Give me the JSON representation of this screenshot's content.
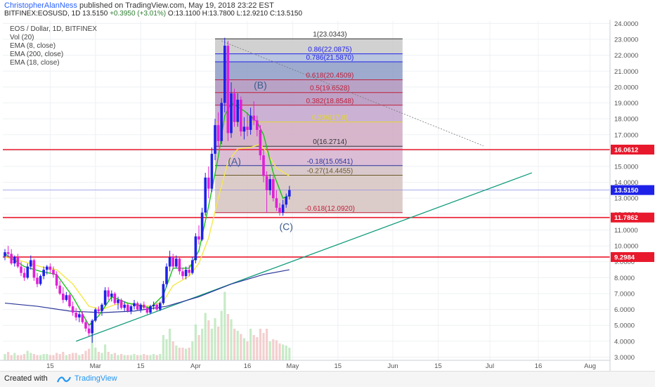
{
  "header": {
    "author": "ChristopherAlanNess",
    "published": "published on TradingView.com, May 19, 2018 23:22 EST",
    "symbol": "BITFINEX:EOSUSD, 1D",
    "last": "13.5150",
    "change": "+0.3950 (+3.01%)",
    "open": "O:13.1100",
    "high": "H:13.7800",
    "low": "L:12.9210",
    "close": "C:13.5150"
  },
  "legend": {
    "title": "EOS / Dollar, 1D, BITFINEX",
    "vol": "Vol (20)",
    "ema8": "EMA (8, close)",
    "ema200": "EMA (200, close)",
    "ema18": "EMA (18, close)"
  },
  "footer": {
    "created": "Created with",
    "brand": "TradingView"
  },
  "colors": {
    "up": "#1e22e8",
    "down": "#e11fd6",
    "ema8": "#18c418",
    "ema18": "#f5e84a",
    "ema200": "#2a3699",
    "red_level": "#e8192c",
    "trend": "#139c7c"
  },
  "chart_data": {
    "type": "candlestick",
    "x_axis": {
      "tick_labels": [
        "15",
        "Mar",
        "15",
        "Apr",
        "16",
        "May",
        "15",
        "Jun",
        "15",
        "Jul",
        "16",
        "Aug"
      ],
      "tick_days": [
        14,
        28,
        42,
        59,
        75,
        89,
        103,
        120,
        134,
        150,
        165,
        181
      ]
    },
    "y_axis": {
      "range": [
        2.8,
        24.15
      ],
      "ticks": [
        "3.0000",
        "4.0000",
        "5.0000",
        "6.0000",
        "7.0000",
        "8.0000",
        "9.0000",
        "10.0000",
        "11.0000",
        "12.0000",
        "13.0000",
        "14.0000",
        "15.0000",
        "16.0000",
        "17.0000",
        "18.0000",
        "19.0000",
        "20.0000",
        "21.0000",
        "22.0000",
        "23.0000",
        "24.0000"
      ]
    },
    "price_labels": [
      {
        "value": 16.0612,
        "text": "16.0612",
        "color": "#e8192c"
      },
      {
        "value": 13.515,
        "text": "13.5150",
        "color": "#1e22e8"
      },
      {
        "value": 11.7862,
        "text": "11.7862",
        "color": "#e8192c"
      },
      {
        "value": 9.2984,
        "text": "9.2984",
        "color": "#e8192c"
      }
    ],
    "horizontal_lines": [
      16.0612,
      11.7862,
      9.2984
    ],
    "candles": [
      [
        9.35,
        9.8,
        9.1,
        9.6
      ],
      [
        9.6,
        10.0,
        9.3,
        9.5
      ],
      [
        9.5,
        9.8,
        8.8,
        8.9
      ],
      [
        8.9,
        9.4,
        8.7,
        9.3
      ],
      [
        9.3,
        9.5,
        8.6,
        8.7
      ],
      [
        8.7,
        9.0,
        8.1,
        8.3
      ],
      [
        8.3,
        8.6,
        7.8,
        8.0
      ],
      [
        8.0,
        8.9,
        7.9,
        8.7
      ],
      [
        8.7,
        9.4,
        8.5,
        9.1
      ],
      [
        9.1,
        9.2,
        7.8,
        8.0
      ],
      [
        8.0,
        8.3,
        7.4,
        7.6
      ],
      [
        7.6,
        8.2,
        7.5,
        8.1
      ],
      [
        8.1,
        8.7,
        7.9,
        8.5
      ],
      [
        8.5,
        8.8,
        8.2,
        8.7
      ],
      [
        8.7,
        8.9,
        8.3,
        8.5
      ],
      [
        8.5,
        8.7,
        8.0,
        8.2
      ],
      [
        8.2,
        8.4,
        7.3,
        7.5
      ],
      [
        7.5,
        7.8,
        6.9,
        7.0
      ],
      [
        7.0,
        7.4,
        6.4,
        6.6
      ],
      [
        6.6,
        7.1,
        6.5,
        6.9
      ],
      [
        6.9,
        7.0,
        6.1,
        6.2
      ],
      [
        6.2,
        6.5,
        5.6,
        5.8
      ],
      [
        5.8,
        6.1,
        5.3,
        5.5
      ],
      [
        5.5,
        5.9,
        5.2,
        5.7
      ],
      [
        5.7,
        5.9,
        5.1,
        5.2
      ],
      [
        5.2,
        5.4,
        4.6,
        4.8
      ],
      [
        4.8,
        5.1,
        4.3,
        4.5
      ],
      [
        4.5,
        5.4,
        3.9,
        5.3
      ],
      [
        5.3,
        6.1,
        5.2,
        6.0
      ],
      [
        6.0,
        6.2,
        5.7,
        5.9
      ],
      [
        5.9,
        6.4,
        5.6,
        6.3
      ],
      [
        6.3,
        7.4,
        6.2,
        7.2
      ],
      [
        7.2,
        7.4,
        6.6,
        6.8
      ],
      [
        6.8,
        7.2,
        6.5,
        7.0
      ],
      [
        7.0,
        7.1,
        6.3,
        6.4
      ],
      [
        6.4,
        6.8,
        6.0,
        6.6
      ],
      [
        6.6,
        6.7,
        6.0,
        6.1
      ],
      [
        6.1,
        6.5,
        5.9,
        6.3
      ],
      [
        6.3,
        6.4,
        5.8,
        5.9
      ],
      [
        5.9,
        6.3,
        5.7,
        6.2
      ],
      [
        6.2,
        6.6,
        6.0,
        6.4
      ],
      [
        6.4,
        6.5,
        5.9,
        6.0
      ],
      [
        6.0,
        6.4,
        5.8,
        6.3
      ],
      [
        6.3,
        6.5,
        6.0,
        6.1
      ],
      [
        6.1,
        6.2,
        5.7,
        5.8
      ],
      [
        5.8,
        6.3,
        5.7,
        6.2
      ],
      [
        6.2,
        6.5,
        6.0,
        6.3
      ],
      [
        6.3,
        6.4,
        5.9,
        6.0
      ],
      [
        6.0,
        6.5,
        5.9,
        6.4
      ],
      [
        6.4,
        7.8,
        6.3,
        7.6
      ],
      [
        7.6,
        8.9,
        7.4,
        8.7
      ],
      [
        8.7,
        9.7,
        8.4,
        9.3
      ],
      [
        9.3,
        9.5,
        8.5,
        8.7
      ],
      [
        8.7,
        9.4,
        8.6,
        9.2
      ],
      [
        9.2,
        9.3,
        8.2,
        8.4
      ],
      [
        8.4,
        8.6,
        7.9,
        8.1
      ],
      [
        8.1,
        8.7,
        7.9,
        8.5
      ],
      [
        8.5,
        8.8,
        8.1,
        8.3
      ],
      [
        8.3,
        9.3,
        8.2,
        9.1
      ],
      [
        9.1,
        10.8,
        8.9,
        10.6
      ],
      [
        10.6,
        11.3,
        10.1,
        10.4
      ],
      [
        10.4,
        12.4,
        10.3,
        12.1
      ],
      [
        12.1,
        14.6,
        11.9,
        14.3
      ],
      [
        14.3,
        15.0,
        13.0,
        13.6
      ],
      [
        13.6,
        16.2,
        13.4,
        15.8
      ],
      [
        15.8,
        18.0,
        15.4,
        17.6
      ],
      [
        17.6,
        18.4,
        16.2,
        16.6
      ],
      [
        16.6,
        19.3,
        16.4,
        19.0
      ],
      [
        19.0,
        23.1,
        18.4,
        22.6
      ],
      [
        22.6,
        22.9,
        16.6,
        17.1
      ],
      [
        17.1,
        20.3,
        16.8,
        19.6
      ],
      [
        19.6,
        19.9,
        17.5,
        17.8
      ],
      [
        17.8,
        19.6,
        17.5,
        19.2
      ],
      [
        19.2,
        19.4,
        16.9,
        17.2
      ],
      [
        17.2,
        18.1,
        16.7,
        17.5
      ],
      [
        17.5,
        18.4,
        16.9,
        17.3
      ],
      [
        17.3,
        18.7,
        17.0,
        18.2
      ],
      [
        18.2,
        19.1,
        17.6,
        17.9
      ],
      [
        17.9,
        18.2,
        16.9,
        17.3
      ],
      [
        17.3,
        17.6,
        15.4,
        15.7
      ],
      [
        15.7,
        16.1,
        14.0,
        14.4
      ],
      [
        14.4,
        14.7,
        12.1,
        13.5
      ],
      [
        13.5,
        14.5,
        13.2,
        14.2
      ],
      [
        14.2,
        14.4,
        12.8,
        13.0
      ],
      [
        13.0,
        13.5,
        12.2,
        12.4
      ],
      [
        12.4,
        12.7,
        11.9,
        12.1
      ],
      [
        12.1,
        12.9,
        11.9,
        12.6
      ],
      [
        12.6,
        13.3,
        12.4,
        13.1
      ],
      [
        13.11,
        13.78,
        12.921,
        13.515
      ]
    ],
    "ema8": [
      [
        0,
        9.5
      ],
      [
        6,
        8.7
      ],
      [
        11,
        8.4
      ],
      [
        16,
        8.2
      ],
      [
        21,
        6.8
      ],
      [
        26,
        5.0
      ],
      [
        29,
        5.6
      ],
      [
        33,
        6.8
      ],
      [
        38,
        6.4
      ],
      [
        45,
        6.1
      ],
      [
        49,
        6.9
      ],
      [
        52,
        8.6
      ],
      [
        57,
        8.6
      ],
      [
        60,
        9.7
      ],
      [
        63,
        12.5
      ],
      [
        66,
        15.6
      ],
      [
        68,
        18.2
      ],
      [
        70,
        19.0
      ],
      [
        74,
        18.5
      ],
      [
        78,
        17.8
      ],
      [
        80,
        17.0
      ],
      [
        83,
        14.6
      ],
      [
        86,
        13.0
      ],
      [
        88,
        13.2
      ]
    ],
    "ema18": [
      [
        0,
        9.3
      ],
      [
        6,
        9.0
      ],
      [
        11,
        8.7
      ],
      [
        16,
        8.5
      ],
      [
        21,
        7.6
      ],
      [
        26,
        6.2
      ],
      [
        30,
        6.0
      ],
      [
        34,
        6.3
      ],
      [
        38,
        6.4
      ],
      [
        45,
        6.2
      ],
      [
        49,
        6.5
      ],
      [
        52,
        7.5
      ],
      [
        57,
        8.1
      ],
      [
        60,
        8.9
      ],
      [
        63,
        10.5
      ],
      [
        66,
        13.0
      ],
      [
        69,
        15.3
      ],
      [
        72,
        16.1
      ],
      [
        76,
        16.2
      ],
      [
        79,
        16.4
      ],
      [
        81,
        15.9
      ],
      [
        84,
        14.9
      ],
      [
        88,
        14.4
      ]
    ],
    "ema200": [
      [
        0,
        6.4
      ],
      [
        10,
        6.2
      ],
      [
        20,
        5.9
      ],
      [
        30,
        5.8
      ],
      [
        40,
        5.9
      ],
      [
        50,
        6.2
      ],
      [
        60,
        6.8
      ],
      [
        70,
        7.6
      ],
      [
        80,
        8.2
      ],
      [
        88,
        8.5
      ]
    ],
    "trend_line": [
      [
        22,
        4.0
      ],
      [
        163,
        14.6
      ]
    ],
    "dotted_line": [
      [
        67,
        22.9
      ],
      [
        148,
        16.3
      ]
    ],
    "volume": [
      0.06,
      0.08,
      0.05,
      0.07,
      0.05,
      0.05,
      0.06,
      0.09,
      0.07,
      0.06,
      0.05,
      0.05,
      0.06,
      0.06,
      0.05,
      0.05,
      0.07,
      0.06,
      0.08,
      0.05,
      0.06,
      0.07,
      0.07,
      0.05,
      0.06,
      0.09,
      0.11,
      0.27,
      0.12,
      0.08,
      0.07,
      0.15,
      0.08,
      0.06,
      0.07,
      0.05,
      0.06,
      0.05,
      0.05,
      0.05,
      0.06,
      0.05,
      0.05,
      0.06,
      0.05,
      0.05,
      0.06,
      0.05,
      0.06,
      0.24,
      0.2,
      0.3,
      0.18,
      0.14,
      0.12,
      0.12,
      0.11,
      0.12,
      0.18,
      0.34,
      0.24,
      0.3,
      0.45,
      0.38,
      0.3,
      0.4,
      0.32,
      0.47,
      0.65,
      0.44,
      0.39,
      0.3,
      0.28,
      0.25,
      0.21,
      0.18,
      0.3,
      0.24,
      0.22,
      0.3,
      0.26,
      0.3,
      0.18,
      0.2,
      0.19,
      0.16,
      0.15,
      0.14,
      0.12
    ],
    "fib": {
      "box": {
        "x0": 65,
        "x1": 123,
        "y_top": 23.0343,
        "y_bottom": 12.092
      },
      "levels": [
        {
          "value": 23.0343,
          "label": "1(23.0343)",
          "color": "#333333",
          "fill": "#c9c9c9"
        },
        {
          "value": 22.0875,
          "label": "0.86(22.0875)",
          "color": "#1e22e8",
          "fill": "#aebbd9"
        },
        {
          "value": 21.587,
          "label": "0.786(21.5870)",
          "color": "#1e22e8",
          "fill": "#8d9cc6"
        },
        {
          "value": 20.4509,
          "label": "0.618(20.4509)",
          "color": "#c11f3b",
          "fill": "#ab93bd"
        },
        {
          "value": 19.6528,
          "label": "0.5(19.6528)",
          "color": "#c11f3b",
          "fill": "#b390bc"
        },
        {
          "value": 18.8548,
          "label": "0.382(18.8548)",
          "color": "#c11f3b",
          "fill": "#c2a5cd"
        },
        {
          "value": 17.8,
          "label": "0.236(17.8)",
          "color": "#e4d62e",
          "fill": "#d0a9c3"
        },
        {
          "value": 16.2714,
          "label": "0(16.2714)",
          "color": "#333333",
          "fill": "#d5b1cf"
        },
        {
          "value": 15.0541,
          "label": "-0.18(15.0541)",
          "color": "#2a3699",
          "fill": "#d2bfc4"
        },
        {
          "value": 14.4455,
          "label": "-0.27(14.4455)",
          "color": "#6b5a2a",
          "fill": "#d6c3bf"
        },
        {
          "value": 12.092,
          "label": "-0.618(12.0920)",
          "color": "#c11f3b",
          "fill": "#d8c6cc"
        }
      ]
    },
    "annotations": [
      {
        "text": "(A)",
        "x": 71,
        "y": 15.1
      },
      {
        "text": "(B)",
        "x": 79,
        "y": 19.9
      },
      {
        "text": "(C)",
        "x": 87,
        "y": 11.0
      }
    ]
  }
}
